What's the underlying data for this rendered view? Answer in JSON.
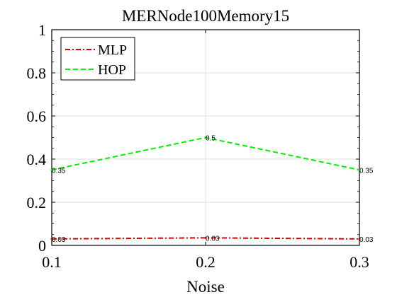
{
  "chart_data": {
    "type": "line",
    "title": "MERNode100Memory15",
    "xlabel": "Noise",
    "ylabel": "",
    "x": [
      0.1,
      0.2,
      0.3
    ],
    "xlim": [
      0.1,
      0.3
    ],
    "ylim": [
      0,
      1
    ],
    "x_ticks": [
      "0.1",
      "0.2",
      "0.3"
    ],
    "y_ticks": [
      "0",
      "0.2",
      "0.4",
      "0.6",
      "0.8",
      "1"
    ],
    "grid": true,
    "legend_position": "top-left",
    "series": [
      {
        "name": "MLP",
        "values": [
          0.03,
          0.035,
          0.03
        ],
        "labels": [
          "0.03",
          "0.03",
          "0.03"
        ],
        "color": "#d40000",
        "style": "dash-dot"
      },
      {
        "name": "HOP",
        "values": [
          0.35,
          0.5,
          0.35
        ],
        "labels": [
          "0.35",
          "0.5",
          "0.35"
        ],
        "color": "#00ee00",
        "style": "dashed"
      }
    ]
  }
}
